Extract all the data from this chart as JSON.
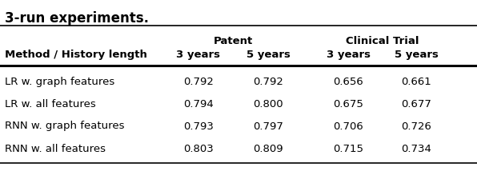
{
  "title": "3-run experiments.",
  "header_row": [
    "Method / History length",
    "3 years",
    "5 years",
    "3 years",
    "5 years"
  ],
  "group_labels": [
    "Patent",
    "Clinical Trial"
  ],
  "rows": [
    [
      "LR w. graph features",
      "0.792",
      "0.792",
      "0.656",
      "0.661"
    ],
    [
      "LR w. all features",
      "0.794",
      "0.800",
      "0.675",
      "0.677"
    ],
    [
      "RNN w. graph features",
      "0.793",
      "0.797",
      "0.706",
      "0.726"
    ],
    [
      "RNN w. all features",
      "0.803",
      "0.809",
      "0.715",
      "0.734"
    ]
  ],
  "background": "#ffffff",
  "text_color": "#000000",
  "fontsize_title": 12,
  "fontsize_header": 9.5,
  "fontsize_body": 9.5
}
